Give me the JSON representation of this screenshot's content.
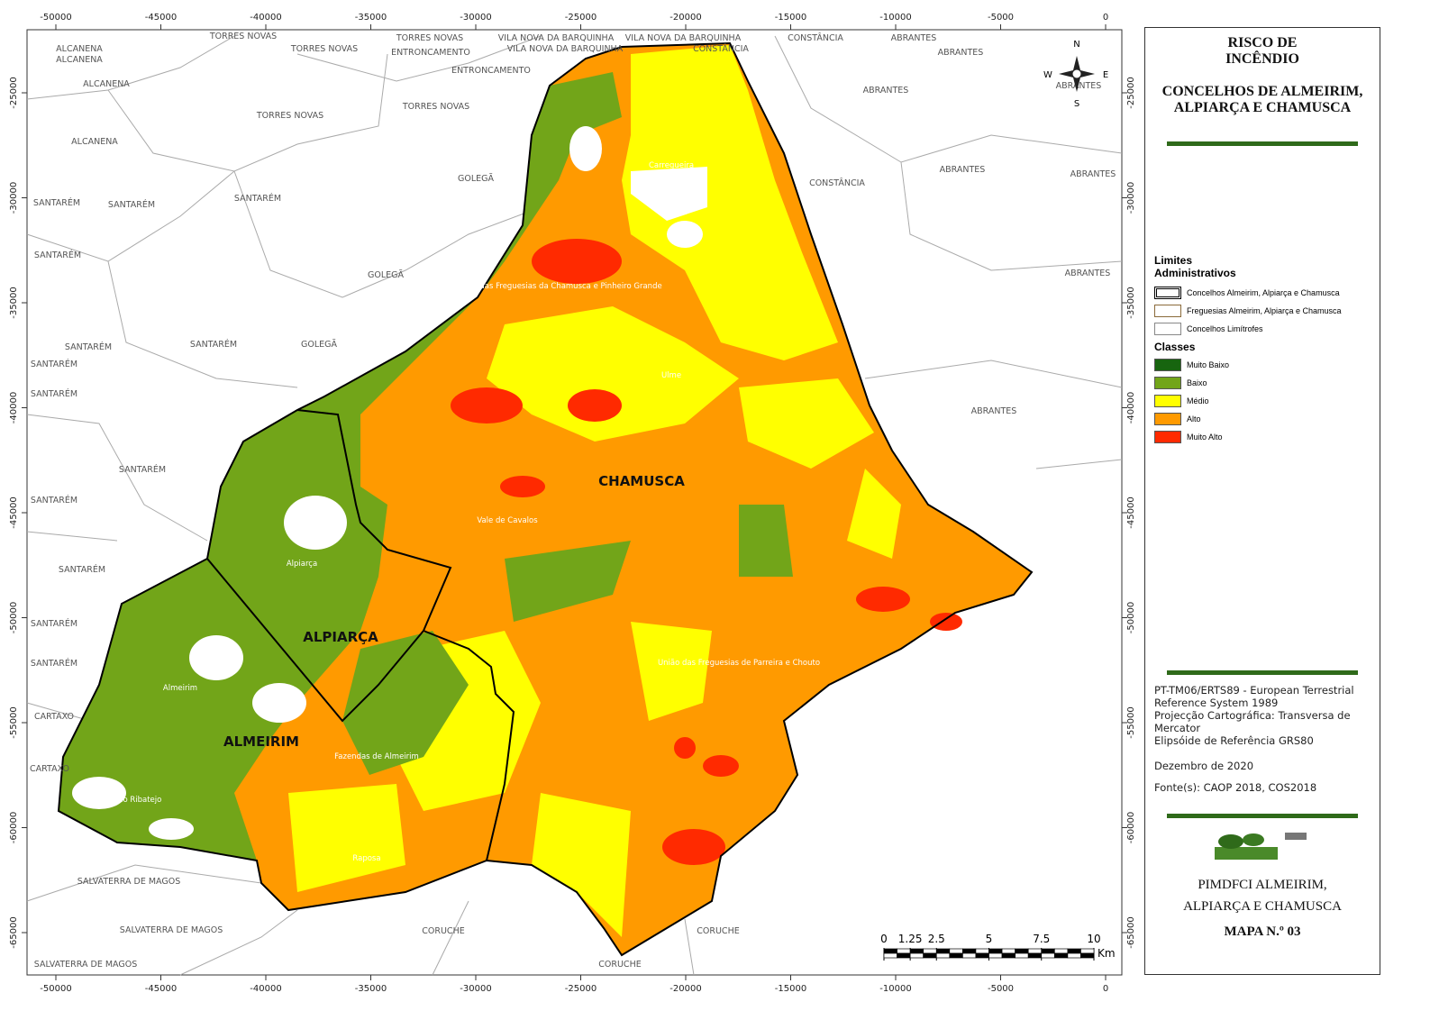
{
  "axes": {
    "xticks": [
      -50000,
      -45000,
      -40000,
      -35000,
      -30000,
      -25000,
      -20000,
      -15000,
      -10000,
      -5000,
      0
    ],
    "yticks": [
      -25000,
      -30000,
      -35000,
      -40000,
      -45000,
      -50000,
      -55000,
      -60000,
      -65000
    ]
  },
  "places": [
    "TORRES NOVAS",
    "TORRES NOVAS",
    "VILA NOVA DA BARQUINHA",
    "VILA NOVA DA BARQUINHA",
    "VILA NOVA DA BARQUINHA",
    "CONSTÂNCIA",
    "ABRANTES",
    "ALCANENA",
    "TORRES NOVAS",
    "ENTRONCAMENTO",
    "ENTRONCAMENTO",
    "CONSTÂNCIA",
    "ABRANTES",
    "ALCANENA",
    "ALCANENA",
    "TORRES NOVAS",
    "TORRES NOVAS",
    "ABRANTES",
    "ABRANTES",
    "ALCANENA",
    "GOLEGÃ",
    "ABRANTES",
    "CONSTÂNCIA",
    "ABRANTES",
    "SANTARÉM",
    "SANTARÉM",
    "SANTARÉM",
    "SANTARÉM",
    "GOLEGÃ",
    "ABRANTES",
    "SANTARÉM",
    "SANTARÉM",
    "GOLEGÃ",
    "SANTARÉM",
    "SANTARÉM",
    "ABRANTES",
    "SANTARÉM",
    "SANTARÉM",
    "SANTARÉM",
    "SANTARÉM",
    "SANTARÉM",
    "CARTAXO",
    "CARTAXO",
    "SALVATERRA DE MAGOS",
    "SALVATERRA DE MAGOS",
    "SALVATERRA DE MAGOS",
    "CORUCHE",
    "CORUCHE",
    "CORUCHE"
  ],
  "parishes": [
    "Carregueira",
    "União das Freguesias da Chamusca e Pinheiro Grande",
    "Ulme",
    "Vale de Cavalos",
    "Alpiarça",
    "União das Freguesias de Parreira e Chouto",
    "Almeirim",
    "Fazendas de Almeirim",
    "Benfica do Ribatejo",
    "Raposa"
  ],
  "municipalities": [
    "CHAMUSCA",
    "ALPIARÇA",
    "ALMEIRIM"
  ],
  "compass": {
    "n": "N",
    "s": "S",
    "e": "E",
    "w": "W"
  },
  "scale_bar": {
    "ticks": [
      0,
      1.25,
      2.5,
      5,
      7.5,
      10
    ],
    "unit": "Km"
  },
  "panel": {
    "title": "RISCO DE INCÊNDIO",
    "subtitle": "CONCELHOS DE ALMEIRIM, ALPIARÇA E CHAMUSCA",
    "admin_title": "Limites Administrativos",
    "admin_items": [
      "Concelhos Almeirim, Alpiarça e Chamusca",
      "Freguesias Almeirim, Alpiarça e Chamusca",
      "Concelhos Limítrofes"
    ],
    "classes_title": "Classes",
    "classes": [
      {
        "name": "Muito Baixo",
        "color": "#17650f"
      },
      {
        "name": "Baixo",
        "color": "#72a519"
      },
      {
        "name": "Médio",
        "color": "#ffff00"
      },
      {
        "name": "Alto",
        "color": "#ff9a00"
      },
      {
        "name": "Muito Alto",
        "color": "#ff2a00"
      }
    ],
    "info": [
      "PT-TM06/ERTS89 - European Terrestrial Reference System 1989",
      "Projecção Cartográfica: Transversa de Mercator",
      "Elipsóide de Referência GRS80"
    ],
    "date": "Dezembro de 2020",
    "sources": "Fonte(s): CAOP 2018,  COS2018",
    "plan": "PIMDFCI ALMEIRIM, ALPIARÇA E CHAMUSCA",
    "map_number": "MAPA N.º 03"
  }
}
